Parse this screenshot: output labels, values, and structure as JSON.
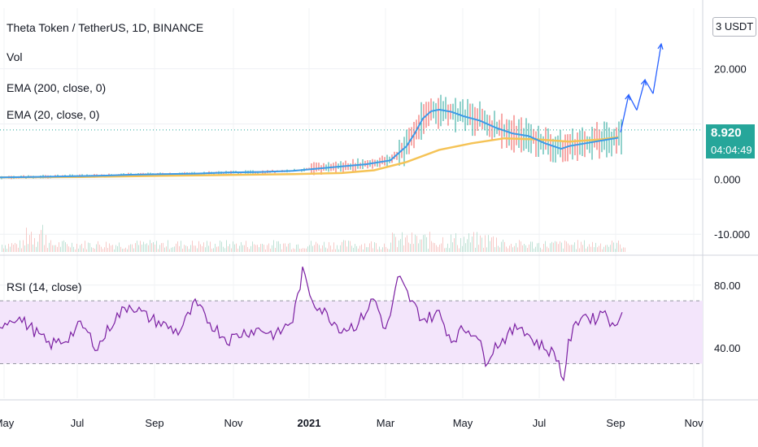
{
  "header": {
    "title": "Theta Token / TetherUS, 1D, BINANCE",
    "vol_label": "Vol",
    "ema200_label": "EMA (200, close, 0)",
    "ema20_label": "EMA (20, close, 0)",
    "rsi_label": "RSI (14, close)",
    "unit_label": "3 USDT"
  },
  "price_tag": {
    "price": "8.920",
    "countdown": "04:04:49"
  },
  "colors": {
    "ema20": "#3d9be8",
    "ema200": "#f5c356",
    "rsi": "#7b1fa2",
    "rsi_band": "#f3e5fb",
    "up": "#26a69a",
    "down": "#ef5350",
    "arrow": "#2962ff",
    "price_tag": "#26a69a"
  },
  "chart_data": [
    {
      "type": "line",
      "name_role": "price",
      "y_ticks": [
        -10,
        0,
        10,
        20
      ],
      "y_tick_labels": [
        "-10.000",
        "0.000",
        "",
        "20.000"
      ],
      "ylim": [
        -13.5,
        31
      ],
      "current_price": 8.92,
      "x_labels": [
        "May",
        "Jul",
        "Sep",
        "Nov",
        "2021",
        "Mar",
        "May",
        "Jul",
        "Sep",
        "Nov"
      ],
      "series": [
        {
          "role": "ema20",
          "x": [
            0,
            40,
            80,
            120,
            160,
            200,
            240,
            280,
            320,
            360,
            390,
            420,
            450,
            480,
            500,
            510,
            520,
            530,
            540,
            555,
            570,
            590,
            610,
            630,
            650,
            670,
            690,
            700,
            720,
            740,
            760
          ],
          "y": [
            0.3,
            0.4,
            0.5,
            0.6,
            0.8,
            0.9,
            1.0,
            1.2,
            1.3,
            1.5,
            1.9,
            2.3,
            2.7,
            3.4,
            6.0,
            8.3,
            11.0,
            12.3,
            12.6,
            12.2,
            11.4,
            10.6,
            9.3,
            8.3,
            7.8,
            6.5,
            5.5,
            6.0,
            6.5,
            7.0,
            7.5
          ]
        },
        {
          "role": "ema200",
          "x": [
            0,
            100,
            200,
            300,
            360,
            420,
            460,
            500,
            540,
            580,
            620,
            660,
            700,
            740,
            760
          ],
          "y": [
            0.3,
            0.4,
            0.6,
            0.8,
            0.9,
            1.1,
            1.6,
            3.1,
            5.3,
            6.5,
            7.4,
            7.2,
            6.8,
            7.2,
            7.6
          ]
        }
      ],
      "projection": {
        "x": [
          763,
          773,
          783,
          793,
          803,
          813
        ],
        "y": [
          8.5,
          15.3,
          12.5,
          18.0,
          15.5,
          24.5
        ]
      }
    },
    {
      "type": "line",
      "name_role": "rsi",
      "y_ticks": [
        40,
        80
      ],
      "y_tick_labels": [
        "40.00",
        "80.00"
      ],
      "band": [
        30,
        70
      ],
      "ylim": [
        8,
        98
      ],
      "x": [
        0,
        20,
        40,
        60,
        80,
        100,
        120,
        140,
        160,
        180,
        200,
        220,
        240,
        260,
        280,
        300,
        320,
        340,
        360,
        372,
        385,
        400,
        420,
        440,
        460,
        475,
        490,
        505,
        520,
        540,
        555,
        570,
        585,
        597,
        610,
        625,
        640,
        655,
        670,
        685,
        692,
        700,
        715,
        730,
        745,
        755,
        767
      ],
      "y": [
        55,
        60,
        52,
        42,
        45,
        55,
        40,
        58,
        68,
        60,
        55,
        50,
        68,
        55,
        45,
        50,
        52,
        48,
        58,
        88,
        70,
        62,
        52,
        55,
        72,
        50,
        85,
        70,
        58,
        62,
        45,
        52,
        50,
        32,
        42,
        48,
        55,
        45,
        40,
        35,
        18,
        45,
        62,
        58,
        65,
        50,
        70
      ]
    }
  ]
}
